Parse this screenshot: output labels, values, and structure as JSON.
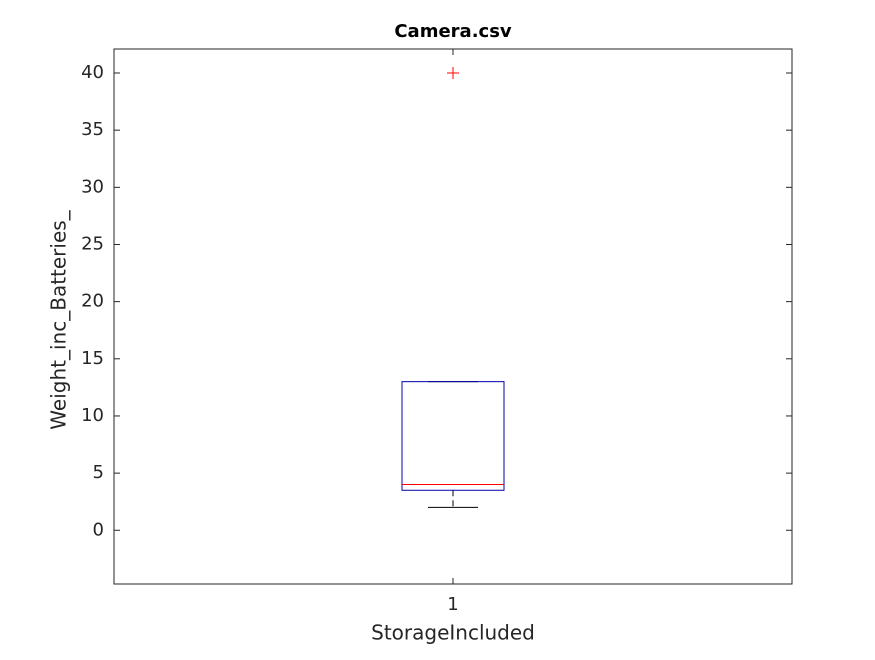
{
  "chart_data": {
    "type": "box",
    "title": "Camera.csv",
    "x_label": "StorageIncluded",
    "y_label": "Weight_inc_Batteries_",
    "categories": [
      "1"
    ],
    "boxes": [
      {
        "whisker_low": 2,
        "q1": 3.5,
        "median": 4,
        "q3": 13,
        "whisker_high": 13,
        "outliers": [
          40
        ]
      }
    ],
    "box_color": "#0000aa",
    "median_color": "#ff0000",
    "whisker_color": "#000000",
    "outlier_color": "#ff0000",
    "ylim": [
      -4.7,
      42.1
    ],
    "yticks": [
      0,
      5,
      10,
      15,
      20,
      25,
      30,
      35,
      40
    ]
  }
}
